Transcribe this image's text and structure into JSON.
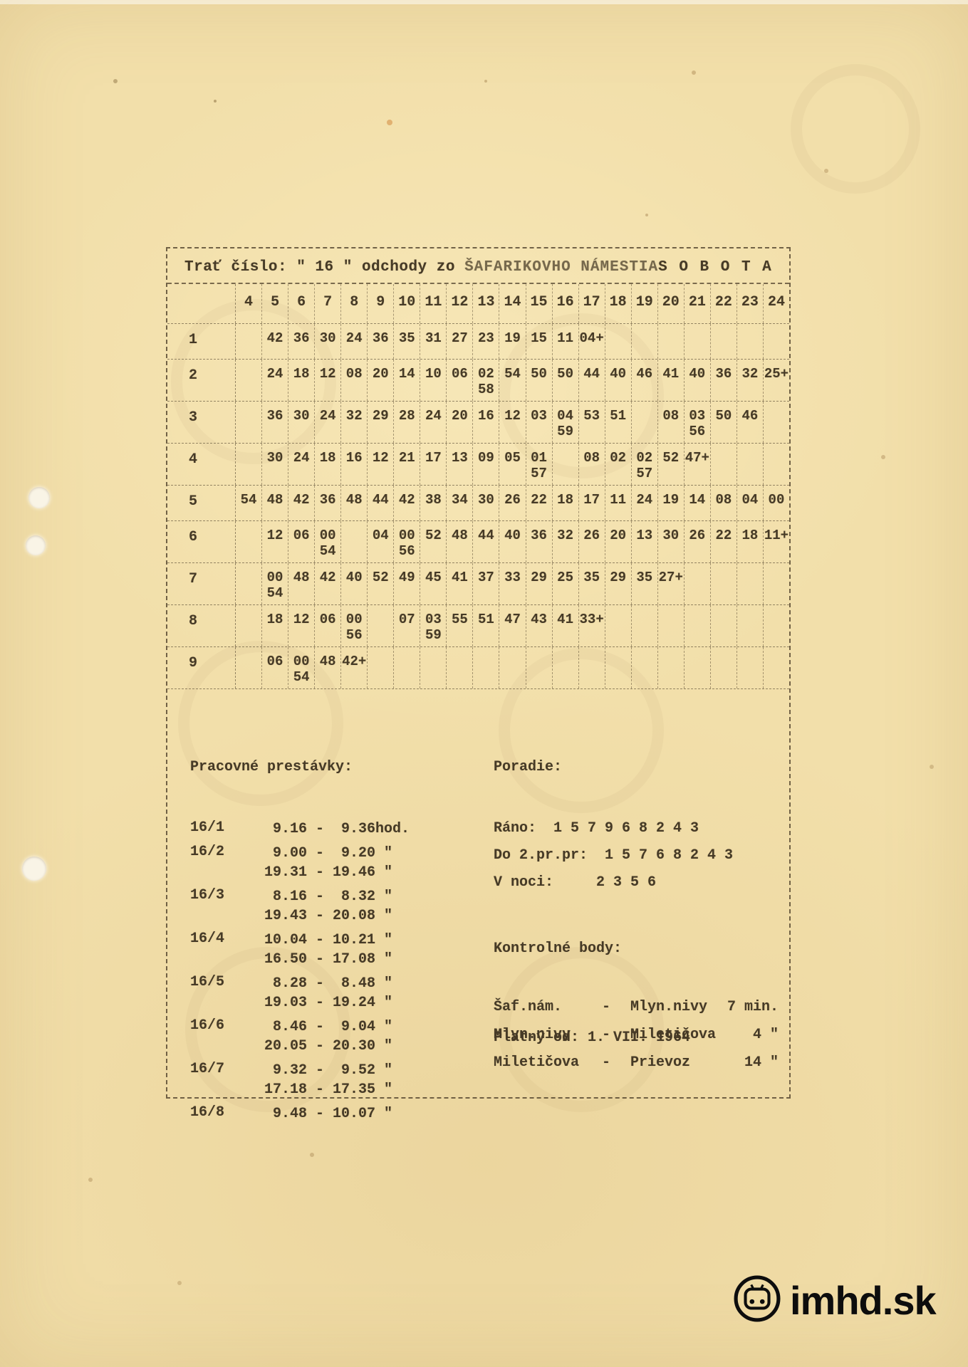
{
  "page": {
    "bg": "#f2dfaa",
    "ink": "#463a26"
  },
  "header": {
    "title_left": "Trať číslo: \" 16 \" odchody zo",
    "title_stamp": "ŠAFARIKOVHO NÁMESTIA",
    "title_right": "S O B O T A"
  },
  "timetable": {
    "hours": [
      "4",
      "5",
      "6",
      "7",
      "8",
      "9",
      "10",
      "11",
      "12",
      "13",
      "14",
      "15",
      "16",
      "17",
      "18",
      "19",
      "20",
      "21",
      "22",
      "23",
      "24"
    ],
    "rows": [
      {
        "label": "1",
        "cells": {
          "5": "42",
          "6": "36",
          "7": "30",
          "8": "24",
          "9": "36",
          "10": "35",
          "11": "31",
          "12": "27",
          "13": "23",
          "14": "19",
          "15": "15",
          "16": "11",
          "17": "04+"
        }
      },
      {
        "label": "2",
        "cells": {
          "5": "24",
          "6": "18",
          "7": "12",
          "8": "08",
          "9": "20",
          "10": "14",
          "11": "10",
          "12": "06",
          "13": "02\n58",
          "14": "54",
          "15": "50",
          "16": "50",
          "17": "44",
          "18": "40",
          "19": "46",
          "20": "41",
          "21": "40",
          "22": "36",
          "23": "32",
          "24": "25+"
        }
      },
      {
        "label": "3",
        "cells": {
          "5": "36",
          "6": "30",
          "7": "24",
          "8": "32",
          "9": "29",
          "10": "28",
          "11": "24",
          "12": "20",
          "13": "16",
          "14": "12",
          "15": "03",
          "16": "04\n59",
          "17": "53",
          "18": "51",
          "20": "08",
          "21": "03\n56",
          "22": "50",
          "23": "46"
        }
      },
      {
        "label": "4",
        "cells": {
          "5": "30",
          "6": "24",
          "7": "18",
          "8": "16",
          "9": "12",
          "10": "21",
          "11": "17",
          "12": "13",
          "13": "09",
          "14": "05",
          "15": "01\n57",
          "17": "08",
          "18": "02",
          "19": "02\n57",
          "20": "52",
          "21": "47+"
        }
      },
      {
        "label": "5",
        "cells": {
          "4": "54",
          "5": "48",
          "6": "42",
          "7": "36",
          "8": "48",
          "9": "44",
          "10": "42",
          "11": "38",
          "12": "34",
          "13": "30",
          "14": "26",
          "15": "22",
          "16": "18",
          "17": "17",
          "18": "11",
          "19": "24",
          "20": "19",
          "21": "14",
          "22": "08",
          "23": "04",
          "24": "00"
        }
      },
      {
        "label": "6",
        "cells": {
          "5": "12",
          "6": "06",
          "7": "00\n54",
          "9": "04",
          "10": "00\n56",
          "11": "52",
          "12": "48",
          "13": "44",
          "14": "40",
          "15": "36",
          "16": "32",
          "17": "26",
          "18": "20",
          "19": "13",
          "20": "30",
          "21": "26",
          "22": "22",
          "23": "18",
          "24": "11+"
        }
      },
      {
        "label": "7",
        "cells": {
          "5": "00\n54",
          "6": "48",
          "7": "42",
          "8": "40",
          "9": "52",
          "10": "49",
          "11": "45",
          "12": "41",
          "13": "37",
          "14": "33",
          "15": "29",
          "16": "25",
          "17": "35",
          "18": "29",
          "19": "35",
          "20": "27+"
        }
      },
      {
        "label": "8",
        "cells": {
          "5": "18",
          "6": "12",
          "7": "06",
          "8": "00\n56",
          "10": "07",
          "11": "03\n59",
          "12": "55",
          "13": "51",
          "14": "47",
          "15": "43",
          "16": "41",
          "17": "33+"
        }
      },
      {
        "label": "9",
        "cells": {
          "5": "06",
          "6": "00\n54",
          "7": "48",
          "8": "42+"
        }
      }
    ]
  },
  "breaks": {
    "heading": "Pracovné prestávky:",
    "items": [
      {
        "label": "16/1",
        "times": [
          " 9.16 -  9.36hod."
        ]
      },
      {
        "label": "16/2",
        "times": [
          " 9.00 -  9.20 \"",
          "19.31 - 19.46 \""
        ]
      },
      {
        "label": "16/3",
        "times": [
          " 8.16 -  8.32 \"",
          "19.43 - 20.08 \""
        ]
      },
      {
        "label": "16/4",
        "times": [
          "10.04 - 10.21 \"",
          "16.50 - 17.08 \""
        ]
      },
      {
        "label": "16/5",
        "times": [
          " 8.28 -  8.48 \"",
          "19.03 - 19.24 \""
        ]
      },
      {
        "label": "16/6",
        "times": [
          " 8.46 -  9.04 \"",
          "20.05 - 20.30 \""
        ]
      },
      {
        "label": "16/7",
        "times": [
          " 9.32 -  9.52 \"",
          "17.18 - 17.35 \""
        ]
      },
      {
        "label": "16/8",
        "times": [
          " 9.48 - 10.07 \""
        ]
      }
    ]
  },
  "order": {
    "heading": "Poradie:",
    "lines": [
      {
        "label": "Ráno:",
        "value": " 1 5 7 9 6 8 2 4 3"
      },
      {
        "label": "Do 2.pr.pr:",
        "value": " 1 5 7 6 8 2 4 3"
      },
      {
        "label": "V noci:",
        "value": "    2 3 5 6"
      }
    ]
  },
  "checkpoints": {
    "heading": "Kontrolné body:",
    "items": [
      {
        "from": "Šaf.nám.",
        "to": "Mlyn.nivy",
        "time": " 7 min."
      },
      {
        "from": "Mlyn.nivy",
        "to": "Miletičova",
        "time": " 4 \""
      },
      {
        "from": "Miletičova",
        "to": "Prievoz",
        "time": "14 \""
      }
    ]
  },
  "validity": "Platný od: 1. VII. 1964",
  "logo": {
    "text": "imhd.sk"
  }
}
